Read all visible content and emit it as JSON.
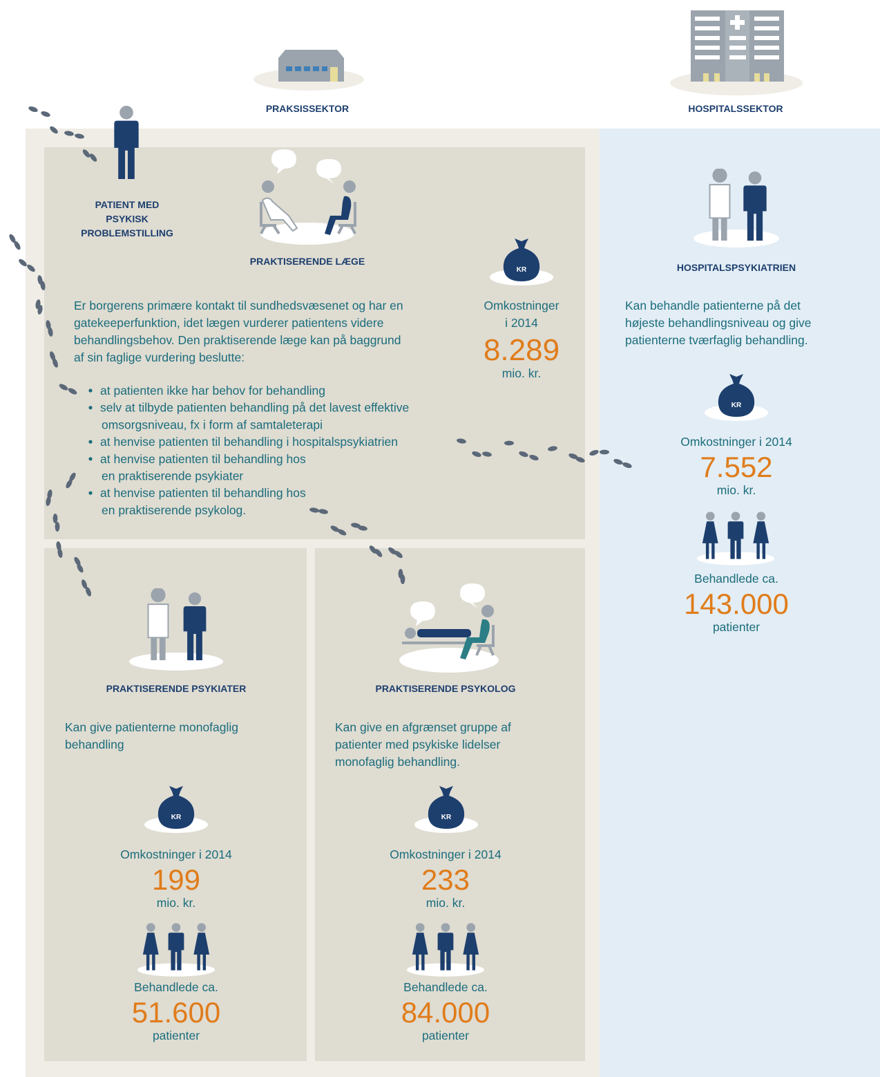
{
  "sectors": {
    "practice": "PRAKSISSEKTOR",
    "hospital": "HOSPITALSSEKTOR"
  },
  "patient": {
    "lines": [
      "PATIENT MED",
      "PSYKISK",
      "PROBLEMSTILLING"
    ]
  },
  "icon_label": "KR",
  "gp": {
    "title": "PRAKTISERENDE LÆGE",
    "description": [
      "Er borgerens primære kontakt til sundhedsvæsenet og har en",
      "gatekeeperfunktion, idet lægen vurderer patientens videre",
      "behandlingsbehov. Den praktiserende læge kan på baggrund",
      "af sin faglige vurdering beslutte:"
    ],
    "bullets": [
      [
        "at patienten ikke har behov for behandling"
      ],
      [
        "selv at tilbyde patienten behandling på det lavest effektive",
        "omsorgsniveau, fx i form af samtaleterapi"
      ],
      [
        "at henvise patienten til behandling i hospitalspsykiatrien"
      ],
      [
        "at henvise patienten til behandling hos",
        "en praktiserende psykiater"
      ],
      [
        "at henvise patienten til behandling hos",
        "en praktiserende psykolog."
      ]
    ],
    "cost": {
      "label": [
        "Omkostninger",
        "i 2014"
      ],
      "value": "8.289",
      "unit": "mio. kr."
    }
  },
  "hospital": {
    "title": "HOSPITALSPSYKIATRIEN",
    "description": [
      "Kan behandle patienterne på det",
      "højeste behandlingsniveau og give",
      "patienterne tværfaglig behandling."
    ],
    "cost": {
      "label": [
        "Omkostninger i 2014"
      ],
      "value": "7.552",
      "unit": "mio. kr."
    },
    "patients": {
      "label": "Behandlede ca.",
      "value": "143.000",
      "unit": "patienter"
    }
  },
  "psychiatrist": {
    "title": "PRAKTISERENDE PSYKIATER",
    "description": [
      "Kan give patienterne monofaglig",
      "behandling"
    ],
    "cost": {
      "label": [
        "Omkostninger i 2014"
      ],
      "value": "199",
      "unit": "mio. kr."
    },
    "patients": {
      "label": "Behandlede ca.",
      "value": "51.600",
      "unit": "patienter"
    }
  },
  "psychologist": {
    "title": "PRAKTISERENDE PSYKOLOG",
    "description": [
      "Kan give en afgrænset gruppe af",
      "patienter med psykiske lidelser",
      "monofaglig behandling."
    ],
    "cost": {
      "label": [
        "Omkostninger i 2014"
      ],
      "value": "233",
      "unit": "mio. kr."
    },
    "patients": {
      "label": "Behandlede ca.",
      "value": "84.000",
      "unit": "patienter"
    }
  }
}
